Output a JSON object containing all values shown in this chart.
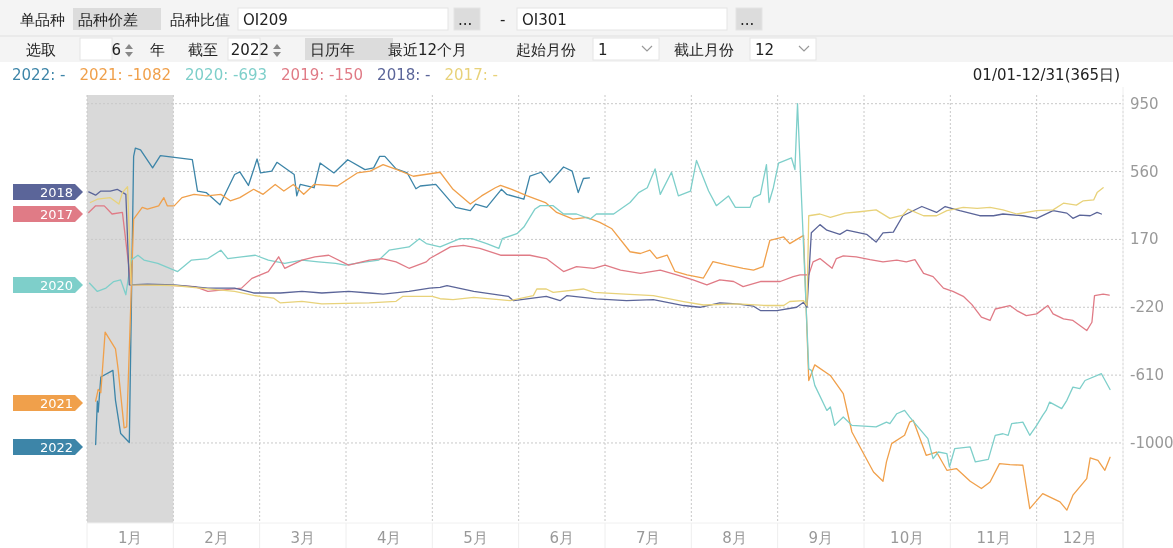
{
  "chart_data": {
    "type": "line",
    "subtitle": "01/01-12/31(365日)",
    "annotations": [
      "单品种",
      "品种价差",
      "品种比值",
      "OI209",
      "...",
      "-",
      "OI301",
      "...",
      "选取",
      "6",
      "年",
      "截至",
      "2022",
      "日历年",
      "最近12个月",
      "起始月份",
      "1",
      "截止月份",
      "12",
      "2018",
      "2017",
      "2020",
      "2021",
      "2022"
    ],
    "xlim": [
      0.5,
      12.5
    ],
    "ylim": [
      -1460,
      1000
    ],
    "xticks": [
      {
        "value": 0.5,
        "label": null
      },
      {
        "value": 1,
        "label": "1月"
      },
      {
        "value": 1.5,
        "label": null
      },
      {
        "value": 2,
        "label": "2月"
      },
      {
        "value": 2.5,
        "label": null
      },
      {
        "value": 3,
        "label": "3月"
      },
      {
        "value": 3.5,
        "label": null
      },
      {
        "value": 4,
        "label": "4月"
      },
      {
        "value": 4.5,
        "label": null
      },
      {
        "value": 5,
        "label": "5月"
      },
      {
        "value": 5.5,
        "label": null
      },
      {
        "value": 6,
        "label": "6月"
      },
      {
        "value": 6.5,
        "label": null
      },
      {
        "value": 7,
        "label": "7月"
      },
      {
        "value": 7.5,
        "label": null
      },
      {
        "value": 8,
        "label": "8月"
      },
      {
        "value": 8.5,
        "label": null
      },
      {
        "value": 9,
        "label": "9月"
      },
      {
        "value": 9.5,
        "label": null
      },
      {
        "value": 10,
        "label": "10月"
      },
      {
        "value": 10.5,
        "label": null
      },
      {
        "value": 11,
        "label": "11月"
      },
      {
        "value": 11.5,
        "label": null
      },
      {
        "value": 12,
        "label": "12月"
      },
      {
        "value": 12.5,
        "label": null
      }
    ],
    "yticks": [
      950,
      560,
      170,
      -220,
      -610,
      -1000
    ],
    "grid": true,
    "legend": "top left",
    "marker": "none",
    "line_style": "solid",
    "bands": [
      {
        "axis": "x",
        "from": 0.5,
        "to": 1.5,
        "color": "#d9d9d9"
      }
    ],
    "series": [
      {
        "name": "2022: -",
        "color": "#3d85a8",
        "x": [
          0.6,
          0.62,
          0.63,
          0.66,
          0.8,
          0.83,
          0.89,
          0.99,
          1.04,
          1.06,
          1.12,
          1.26,
          1.35,
          1.72,
          1.78,
          1.88,
          2.04,
          2.21,
          2.27,
          2.37,
          2.47,
          2.51,
          2.64,
          2.7,
          2.9,
          2.93,
          2.97,
          3.13,
          3.2,
          3.36,
          3.52,
          3.72,
          3.82,
          3.89,
          3.95,
          4.08,
          4.21,
          4.31,
          4.36,
          4.54,
          4.77,
          4.94,
          5.0,
          5.13,
          5.3,
          5.36,
          5.56,
          5.63,
          5.76,
          5.86,
          6.02,
          6.12,
          6.19,
          6.25,
          6.32
        ],
        "values": [
          -1009,
          -759,
          -822,
          -621,
          -583,
          -755,
          -946,
          -997,
          647,
          694,
          685,
          581,
          651,
          628,
          448,
          439,
          369,
          543,
          558,
          480,
          632,
          552,
          562,
          613,
          543,
          420,
          486,
          467,
          609,
          552,
          628,
          571,
          581,
          647,
          647,
          575,
          552,
          461,
          477,
          486,
          354,
          335,
          373,
          354,
          458,
          429,
          401,
          534,
          556,
          496,
          586,
          562,
          439,
          520,
          524
        ]
      },
      {
        "name": "2021: -1082",
        "color": "#f0a04b",
        "x": [
          0.6,
          0.63,
          0.66,
          0.71,
          0.83,
          0.86,
          0.93,
          0.96,
          1.04,
          1.14,
          1.2,
          1.33,
          1.39,
          1.43,
          1.51,
          1.6,
          1.74,
          1.89,
          2.05,
          2.16,
          2.27,
          2.43,
          2.54,
          2.68,
          2.78,
          2.89,
          3.01,
          3.13,
          3.4,
          3.63,
          3.78,
          3.93,
          4.09,
          4.28,
          4.59,
          4.74,
          4.94,
          5.07,
          5.23,
          5.29,
          5.42,
          5.6,
          5.81,
          5.94,
          6.13,
          6.29,
          6.44,
          6.58,
          6.79,
          6.91,
          7.02,
          7.1,
          7.22,
          7.31,
          7.45,
          7.64,
          7.75,
          7.91,
          8.1,
          8.22,
          8.33,
          8.41,
          8.57,
          8.64,
          8.8,
          8.86,
          8.93,
          9.11,
          9.26,
          9.36,
          9.61,
          9.72,
          9.76,
          9.82,
          9.97,
          10.03,
          10.07,
          10.22,
          10.34,
          10.46,
          10.57,
          10.73,
          10.86,
          10.96,
          11.07,
          11.19,
          11.34,
          11.42,
          11.57,
          11.77,
          11.85,
          11.92,
          12.08,
          12.12,
          12.21,
          12.29,
          12.35
        ],
        "values": [
          -760,
          -692,
          -711,
          -363,
          -459,
          -573,
          -913,
          -908,
          287,
          354,
          344,
          363,
          410,
          363,
          363,
          410,
          429,
          420,
          429,
          392,
          410,
          458,
          429,
          486,
          448,
          486,
          429,
          486,
          477,
          552,
          562,
          600,
          571,
          533,
          556,
          458,
          373,
          420,
          467,
          480,
          458,
          420,
          382,
          325,
          287,
          297,
          268,
          231,
          99,
          89,
          108,
          61,
          80,
          -14,
          -34,
          -52,
          42,
          23,
          4,
          -6,
          13,
          165,
          184,
          146,
          193,
          -641,
          -551,
          -612,
          -717,
          -937,
          -1167,
          -1220,
          -1109,
          -1004,
          -956,
          -880,
          -870,
          -1071,
          -1052,
          -1157,
          -1147,
          -1220,
          -1262,
          -1224,
          -1119,
          -1124,
          -1128,
          -1377,
          -1291,
          -1339,
          -1386,
          -1300,
          -1205,
          -1086,
          -1100,
          -1157,
          -1082
        ]
      },
      {
        "name": "2020: -693",
        "color": "#7ecfca",
        "x": [
          0.53,
          0.62,
          0.72,
          0.81,
          0.89,
          0.95,
          1.01,
          1.09,
          1.16,
          1.32,
          1.55,
          1.71,
          1.9,
          2.05,
          2.13,
          2.29,
          2.45,
          2.6,
          2.79,
          2.99,
          3.18,
          3.38,
          3.49,
          3.73,
          3.88,
          4.0,
          4.23,
          4.35,
          4.43,
          4.59,
          4.82,
          4.96,
          5.13,
          5.27,
          5.31,
          5.48,
          5.56,
          5.69,
          5.75,
          5.9,
          6.02,
          6.17,
          6.33,
          6.4,
          6.6,
          6.79,
          6.89,
          6.99,
          7.08,
          7.14,
          7.27,
          7.35,
          7.49,
          7.56,
          7.7,
          7.79,
          7.93,
          8.01,
          8.18,
          8.22,
          8.3,
          8.37,
          8.4,
          8.45,
          8.51,
          8.66,
          8.7,
          8.73,
          8.86,
          8.89,
          8.93,
          9.07,
          9.11,
          9.16,
          9.26,
          9.36,
          9.64,
          9.76,
          9.8,
          9.88,
          9.97,
          10.03,
          10.11,
          10.24,
          10.3,
          10.36,
          10.46,
          10.49,
          10.55,
          10.73,
          10.79,
          10.94,
          11.02,
          11.11,
          11.17,
          11.21,
          11.34,
          11.42,
          11.5,
          11.57,
          11.61,
          11.65,
          11.79,
          11.85,
          11.92,
          12.0,
          12.06,
          12.25,
          12.35
        ],
        "values": [
          -82,
          -129,
          -110,
          -72,
          -63,
          -148,
          51,
          79,
          51,
          32,
          -15,
          51,
          60,
          108,
          60,
          70,
          79,
          51,
          32,
          51,
          41,
          32,
          22,
          41,
          51,
          108,
          127,
          174,
          146,
          127,
          174,
          174,
          146,
          118,
          174,
          203,
          241,
          345,
          364,
          364,
          316,
          316,
          287,
          316,
          316,
          382,
          439,
          467,
          575,
          429,
          556,
          420,
          448,
          624,
          448,
          364,
          420,
          354,
          354,
          410,
          429,
          600,
          382,
          467,
          609,
          638,
          571,
          950,
          -574,
          -583,
          -669,
          -813,
          -793,
          -899,
          -851,
          -899,
          -908,
          -880,
          -889,
          -832,
          -813,
          -851,
          -899,
          -975,
          -1090,
          -1052,
          -1061,
          -1138,
          -1033,
          -1023,
          -1109,
          -1094,
          -956,
          -947,
          -956,
          -889,
          -880,
          -956,
          -899,
          -841,
          -813,
          -765,
          -803,
          -755,
          -679,
          -688,
          -641,
          -602,
          -693
        ]
      },
      {
        "name": "2019: -150",
        "color": "#e07b86",
        "x": [
          0.52,
          0.6,
          0.7,
          0.79,
          0.91,
          1.01,
          1.35,
          1.75,
          1.9,
          2.29,
          2.41,
          2.6,
          2.72,
          2.79,
          2.99,
          3.14,
          3.3,
          3.53,
          3.77,
          3.92,
          4.08,
          4.23,
          4.43,
          4.47,
          4.71,
          4.86,
          5.05,
          5.29,
          5.48,
          5.63,
          5.82,
          6.02,
          6.17,
          6.37,
          6.5,
          6.68,
          6.91,
          7.14,
          7.33,
          7.52,
          7.68,
          7.83,
          7.99,
          8.1,
          8.3,
          8.53,
          8.68,
          8.76,
          8.86,
          8.91,
          8.99,
          9.13,
          9.18,
          9.26,
          9.41,
          9.57,
          9.72,
          9.88,
          9.99,
          10.09,
          10.19,
          10.3,
          10.42,
          10.53,
          10.65,
          10.75,
          10.86,
          10.96,
          11.02,
          11.19,
          11.27,
          11.38,
          11.5,
          11.63,
          11.69,
          11.81,
          11.92,
          12.08,
          12.14,
          12.17,
          12.27,
          12.34
        ],
        "values": [
          325,
          363,
          363,
          316,
          325,
          -91,
          -91,
          -101,
          -129,
          -110,
          -54,
          -15,
          70,
          4,
          51,
          70,
          79,
          22,
          51,
          60,
          41,
          4,
          41,
          60,
          127,
          136,
          118,
          79,
          79,
          79,
          60,
          -15,
          13,
          4,
          22,
          -6,
          -25,
          -6,
          -34,
          -62,
          -91,
          -62,
          -72,
          -101,
          -72,
          -72,
          -44,
          -34,
          -34,
          41,
          60,
          4,
          60,
          75,
          70,
          54,
          41,
          51,
          41,
          54,
          -25,
          -44,
          -110,
          -129,
          -157,
          -205,
          -277,
          -296,
          -230,
          -210,
          -239,
          -268,
          -258,
          -210,
          -258,
          -287,
          -296,
          -354,
          -306,
          -153,
          -144,
          -150
        ]
      },
      {
        "name": "2018: -",
        "color": "#5b6599",
        "x": [
          0.52,
          0.6,
          0.66,
          0.77,
          0.85,
          0.95,
          0.99,
          1.2,
          1.51,
          1.9,
          2.21,
          2.43,
          2.74,
          2.99,
          3.22,
          3.53,
          3.77,
          3.93,
          4.23,
          4.47,
          4.59,
          4.67,
          4.98,
          5.38,
          5.44,
          5.82,
          5.98,
          6.06,
          6.4,
          6.75,
          7.06,
          7.41,
          7.6,
          7.83,
          8.03,
          8.22,
          8.3,
          8.49,
          8.72,
          8.8,
          8.84,
          8.89,
          8.99,
          9.07,
          9.22,
          9.3,
          9.53,
          9.64,
          9.72,
          9.84,
          9.95,
          10.17,
          10.34,
          10.44,
          10.61,
          10.84,
          11.0,
          11.11,
          11.34,
          11.5,
          11.69,
          11.85,
          11.92,
          12.0,
          12.12,
          12.2,
          12.25
        ],
        "values": [
          443,
          424,
          448,
          448,
          458,
          429,
          -91,
          -87,
          -91,
          -110,
          -110,
          -138,
          -138,
          -129,
          -138,
          -129,
          -138,
          -144,
          -129,
          -110,
          -106,
          -95,
          -129,
          -157,
          -182,
          -157,
          -182,
          -153,
          -172,
          -182,
          -176,
          -210,
          -220,
          -195,
          -201,
          -214,
          -239,
          -239,
          -220,
          -191,
          -220,
          208,
          255,
          223,
          199,
          223,
          199,
          155,
          208,
          212,
          306,
          359,
          325,
          359,
          335,
          306,
          306,
          316,
          306,
          291,
          335,
          321,
          291,
          310,
          306,
          325,
          316
        ]
      },
      {
        "name": "2017: -",
        "color": "#e8d27a",
        "x": [
          0.54,
          0.62,
          0.77,
          0.87,
          0.91,
          0.97,
          1.01,
          1.51,
          1.81,
          2.21,
          2.43,
          2.66,
          2.74,
          2.99,
          3.22,
          3.77,
          4.08,
          4.16,
          4.5,
          4.59,
          4.74,
          4.98,
          5.4,
          5.67,
          5.71,
          5.82,
          5.9,
          6.25,
          6.37,
          6.68,
          7.06,
          7.41,
          7.64,
          8.03,
          8.37,
          8.57,
          8.64,
          8.8,
          8.84,
          8.86,
          8.99,
          9.11,
          9.28,
          9.45,
          9.64,
          9.8,
          9.95,
          10.01,
          10.19,
          10.34,
          10.46,
          10.65,
          10.81,
          10.96,
          11.11,
          11.27,
          11.5,
          11.69,
          11.81,
          11.96,
          12.04,
          12.16,
          12.2,
          12.27
        ],
        "values": [
          382,
          401,
          410,
          373,
          439,
          473,
          -91,
          -95,
          -110,
          -129,
          -152,
          -167,
          -195,
          -186,
          -201,
          -195,
          -186,
          -157,
          -157,
          -171,
          -176,
          -163,
          -182,
          -153,
          -115,
          -115,
          -134,
          -115,
          -134,
          -143,
          -153,
          -187,
          -207,
          -201,
          -210,
          -210,
          -187,
          -182,
          -210,
          306,
          316,
          297,
          321,
          329,
          340,
          291,
          310,
          344,
          306,
          306,
          335,
          354,
          348,
          354,
          340,
          316,
          335,
          340,
          378,
          367,
          392,
          397,
          439,
          467
        ]
      }
    ]
  }
}
